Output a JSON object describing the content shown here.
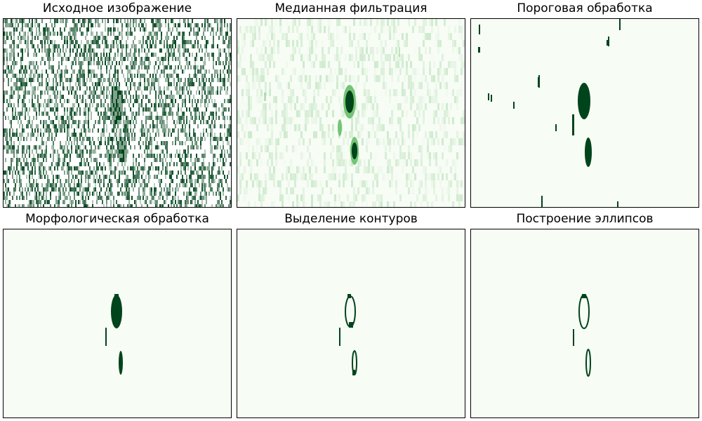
{
  "panels": [
    {
      "title": "Исходное изображение"
    },
    {
      "title": "Медианная фильтрация"
    },
    {
      "title": "Пороговая обработка"
    },
    {
      "title": "Морфологическая обработка"
    },
    {
      "title": "Выделение контуров"
    },
    {
      "title": "Построение эллипсов"
    }
  ],
  "colors": {
    "background": "#f7fcf5",
    "mid": "#74c476",
    "dark": "#00441b",
    "border": "#000000"
  }
}
